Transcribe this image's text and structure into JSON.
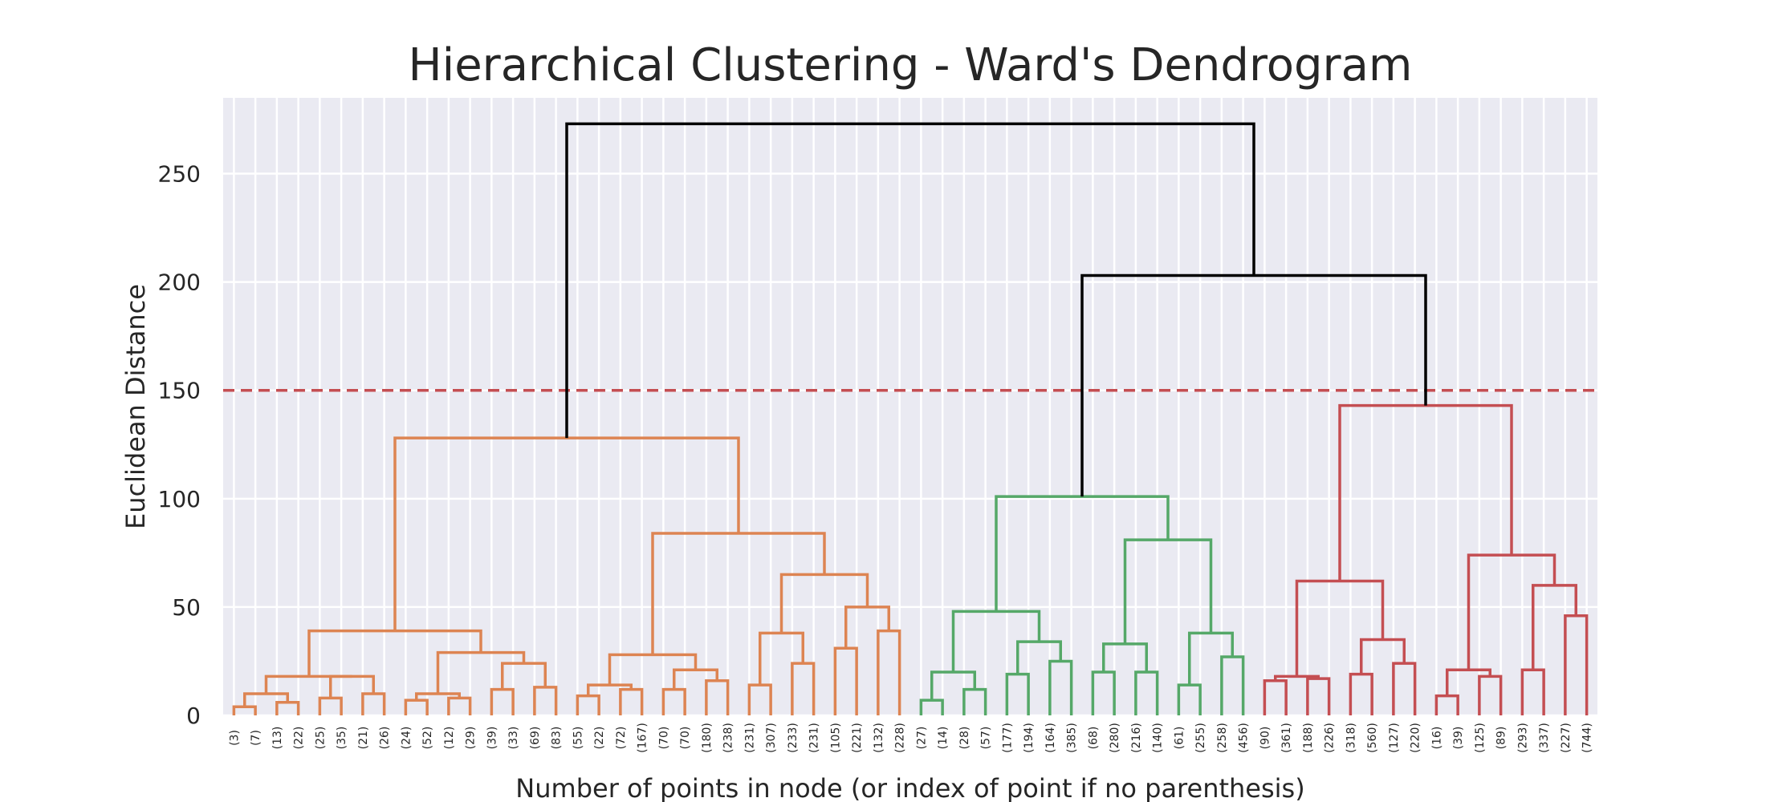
{
  "chart_data": {
    "type": "dendrogram",
    "title": "Hierarchical Clustering - Ward's Dendrogram",
    "xlabel": "Number of points in node (or index of point if no parenthesis)",
    "ylabel": "Euclidean Distance",
    "ylim": [
      0,
      285
    ],
    "yticks": [
      0,
      50,
      100,
      150,
      200,
      250
    ],
    "grid": true,
    "threshold": 150,
    "colors": {
      "cluster1": "#dd8452",
      "cluster2": "#55a868",
      "cluster3": "#c44e52",
      "above": "#000000",
      "threshold": "#c44e52",
      "background": "#eaeaf2",
      "grid": "#ffffff"
    },
    "leaf_labels": [
      "(3)",
      "(7)",
      "(13)",
      "(22)",
      "(25)",
      "(35)",
      "(21)",
      "(26)",
      "(24)",
      "(52)",
      "(12)",
      "(29)",
      "(39)",
      "(33)",
      "(69)",
      "(83)",
      "(55)",
      "(22)",
      "(72)",
      "(167)",
      "(70)",
      "(70)",
      "(180)",
      "(238)",
      "(231)",
      "(307)",
      "(233)",
      "(231)",
      "(105)",
      "(221)",
      "(132)",
      "(228)",
      "(27)",
      "(14)",
      "(28)",
      "(57)",
      "(177)",
      "(194)",
      "(164)",
      "(385)",
      "(68)",
      "(280)",
      "(216)",
      "(140)",
      "(61)",
      "(255)",
      "(258)",
      "(456)",
      "(90)",
      "(361)",
      "(188)",
      "(226)",
      "(318)",
      "(560)",
      "(127)",
      "(220)",
      "(16)",
      "(39)",
      "(125)",
      "(89)",
      "(293)",
      "(337)",
      "(227)",
      "(744)"
    ],
    "merges": [
      [
        0,
        1,
        4,
        "cluster1"
      ],
      [
        2,
        3,
        6,
        "cluster1"
      ],
      [
        64,
        65,
        10,
        "cluster1"
      ],
      [
        4,
        5,
        8,
        "cluster1"
      ],
      [
        6,
        7,
        10,
        "cluster1"
      ],
      [
        67,
        68,
        18,
        "cluster1"
      ],
      [
        66,
        69,
        18,
        "cluster1"
      ],
      [
        8,
        9,
        7,
        "cluster1"
      ],
      [
        10,
        11,
        8,
        "cluster1"
      ],
      [
        71,
        72,
        10,
        "cluster1"
      ],
      [
        12,
        13,
        12,
        "cluster1"
      ],
      [
        14,
        15,
        13,
        "cluster1"
      ],
      [
        75,
        74,
        24,
        "cluster1"
      ],
      [
        73,
        76,
        29,
        "cluster1"
      ],
      [
        70,
        77,
        39,
        "cluster1"
      ],
      [
        16,
        17,
        9,
        "cluster1"
      ],
      [
        18,
        19,
        12,
        "cluster1"
      ],
      [
        79,
        80,
        14,
        "cluster1"
      ],
      [
        20,
        21,
        12,
        "cluster1"
      ],
      [
        22,
        23,
        16,
        "cluster1"
      ],
      [
        82,
        83,
        21,
        "cluster1"
      ],
      [
        81,
        84,
        28,
        "cluster1"
      ],
      [
        24,
        25,
        14,
        "cluster1"
      ],
      [
        26,
        27,
        24,
        "cluster1"
      ],
      [
        86,
        87,
        38,
        "cluster1"
      ],
      [
        28,
        29,
        31,
        "cluster1"
      ],
      [
        30,
        31,
        39,
        "cluster1"
      ],
      [
        89,
        90,
        50,
        "cluster1"
      ],
      [
        88,
        91,
        65,
        "cluster1"
      ],
      [
        85,
        92,
        84,
        "cluster1"
      ],
      [
        78,
        93,
        128,
        "cluster1"
      ],
      [
        32,
        33,
        7,
        "cluster2"
      ],
      [
        34,
        35,
        12,
        "cluster2"
      ],
      [
        95,
        96,
        20,
        "cluster2"
      ],
      [
        36,
        37,
        19,
        "cluster2"
      ],
      [
        38,
        39,
        25,
        "cluster2"
      ],
      [
        98,
        99,
        34,
        "cluster2"
      ],
      [
        97,
        100,
        48,
        "cluster2"
      ],
      [
        40,
        41,
        20,
        "cluster2"
      ],
      [
        42,
        43,
        20,
        "cluster2"
      ],
      [
        102,
        103,
        33,
        "cluster2"
      ],
      [
        44,
        45,
        14,
        "cluster2"
      ],
      [
        46,
        47,
        27,
        "cluster2"
      ],
      [
        105,
        106,
        38,
        "cluster2"
      ],
      [
        104,
        107,
        81,
        "cluster2"
      ],
      [
        101,
        108,
        101,
        "cluster2"
      ],
      [
        48,
        49,
        16,
        "cluster3"
      ],
      [
        50,
        51,
        17,
        "cluster3"
      ],
      [
        110,
        111,
        18,
        "cluster3"
      ],
      [
        52,
        53,
        19,
        "cluster3"
      ],
      [
        54,
        55,
        24,
        "cluster3"
      ],
      [
        113,
        114,
        35,
        "cluster3"
      ],
      [
        112,
        115,
        62,
        "cluster3"
      ],
      [
        56,
        57,
        9,
        "cluster3"
      ],
      [
        58,
        59,
        18,
        "cluster3"
      ],
      [
        117,
        118,
        21,
        "cluster3"
      ],
      [
        60,
        61,
        21,
        "cluster3"
      ],
      [
        62,
        63,
        46,
        "cluster3"
      ],
      [
        120,
        121,
        60,
        "cluster3"
      ],
      [
        119,
        122,
        74,
        "cluster3"
      ],
      [
        116,
        123,
        143,
        "cluster3"
      ],
      [
        109,
        124,
        203,
        "above"
      ],
      [
        94,
        125,
        273,
        "above"
      ]
    ]
  }
}
